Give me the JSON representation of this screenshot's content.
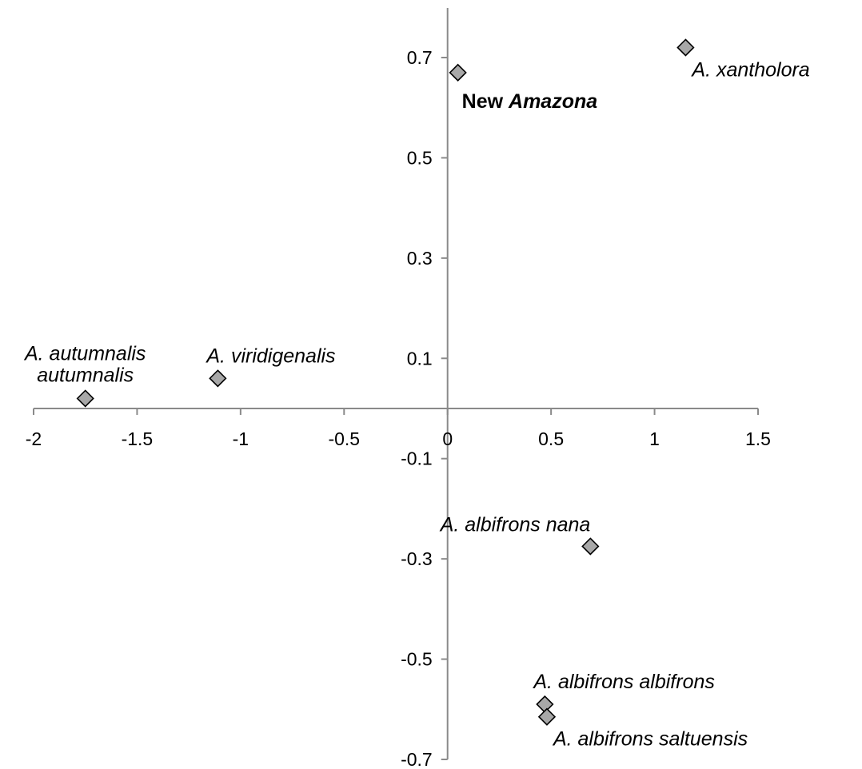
{
  "chart_data": {
    "type": "scatter",
    "title": "",
    "xlabel": "",
    "ylabel": "",
    "xlim": [
      -2,
      1.5
    ],
    "ylim": [
      -0.7,
      0.8
    ],
    "x_ticks": [
      -2,
      -1.5,
      -1,
      -0.5,
      0,
      0.5,
      1,
      1.5
    ],
    "x_tick_labels": [
      "-2",
      "-1.5",
      "-1",
      "-0.5",
      "0",
      "0.5",
      "1",
      "1.5"
    ],
    "y_ticks": [
      -0.7,
      -0.5,
      -0.3,
      -0.1,
      0.1,
      0.3,
      0.5,
      0.7
    ],
    "y_tick_labels": [
      "-0.7",
      "-0.5",
      "-0.3",
      "-0.1",
      "0.1",
      "0.3",
      "0.5",
      "0.7"
    ],
    "grid": false,
    "legend": "none",
    "marker": "diamond",
    "marker_fill": "#a8a8a8",
    "marker_stroke": "#000000",
    "axis_color": "#8a8a8a",
    "points": [
      {
        "x": 0.05,
        "y": 0.67,
        "label_lines": [
          [
            {
              "text": "New ",
              "bold": true,
              "italic": false
            },
            {
              "text": "Amazona",
              "bold": true,
              "italic": true
            }
          ]
        ],
        "label_pos": "below"
      },
      {
        "x": 1.15,
        "y": 0.72,
        "label_lines": [
          [
            {
              "text": "A. xantholora",
              "bold": false,
              "italic": true
            }
          ]
        ],
        "label_pos": "below-right"
      },
      {
        "x": -1.75,
        "y": 0.02,
        "label_lines": [
          [
            {
              "text": "A. autumnalis",
              "bold": false,
              "italic": true
            }
          ],
          [
            {
              "text": "autumnalis",
              "bold": false,
              "italic": true
            }
          ]
        ],
        "label_pos": "above"
      },
      {
        "x": -1.11,
        "y": 0.06,
        "label_lines": [
          [
            {
              "text": "A. viridigenalis",
              "bold": false,
              "italic": true
            }
          ]
        ],
        "label_pos": "above-right"
      },
      {
        "x": 0.69,
        "y": -0.275,
        "label_lines": [
          [
            {
              "text": "A. albifrons nana",
              "bold": false,
              "italic": true
            }
          ]
        ],
        "label_pos": "above-left"
      },
      {
        "x": 0.47,
        "y": -0.59,
        "label_lines": [
          [
            {
              "text": "A. albifrons albifrons",
              "bold": false,
              "italic": true
            }
          ]
        ],
        "label_pos": "above-right"
      },
      {
        "x": 0.48,
        "y": -0.615,
        "label_lines": [
          [
            {
              "text": "A. albifrons saltuensis",
              "bold": false,
              "italic": true
            }
          ]
        ],
        "label_pos": "below-right"
      }
    ]
  }
}
